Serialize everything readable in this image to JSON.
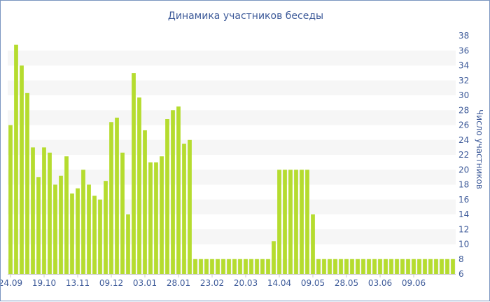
{
  "chart_data": {
    "type": "bar",
    "title": "Динамика участников беседы",
    "xlabel": "",
    "ylabel": "Число участников",
    "ylim": [
      6,
      38
    ],
    "y_ticks": [
      6,
      8,
      10,
      12,
      14,
      16,
      18,
      20,
      22,
      24,
      26,
      28,
      30,
      32,
      34,
      36,
      38
    ],
    "y_axis_position": "right",
    "grid": "alternating horizontal bands",
    "bar_color": "#b5dc2f",
    "band_color": "#f6f6f6",
    "text_color": "#3d5a99",
    "x_tick_labels": [
      {
        "label": "24.09",
        "index": 0
      },
      {
        "label": "19.10",
        "index": 6
      },
      {
        "label": "13.11",
        "index": 12
      },
      {
        "label": "09.12",
        "index": 18
      },
      {
        "label": "03.01",
        "index": 24
      },
      {
        "label": "28.01",
        "index": 30
      },
      {
        "label": "23.02",
        "index": 36
      },
      {
        "label": "20.03",
        "index": 42
      },
      {
        "label": "14.04",
        "index": 48
      },
      {
        "label": "09.05",
        "index": 54
      },
      {
        "label": "28.05",
        "index": 60
      },
      {
        "label": "03.06",
        "index": 66
      },
      {
        "label": "09.06",
        "index": 72
      }
    ],
    "values": [
      26,
      36.8,
      34,
      30.3,
      23,
      19,
      23,
      22.3,
      18,
      19.2,
      21.8,
      16.8,
      17.5,
      20,
      18,
      16.5,
      16,
      18.5,
      26.4,
      27,
      22.3,
      14,
      33,
      29.7,
      25.3,
      21,
      21,
      21.8,
      26.8,
      28,
      28.5,
      23.5,
      24,
      8,
      8,
      8,
      8,
      8,
      8,
      8,
      8,
      8,
      8,
      8,
      8,
      8,
      8,
      10.4,
      20,
      20,
      20,
      20,
      20,
      20,
      14,
      8,
      8,
      8,
      8,
      8,
      8,
      8,
      8,
      8,
      8,
      8,
      8,
      8,
      8,
      8,
      8,
      8,
      8,
      8,
      8,
      8,
      8,
      8,
      8,
      8
    ]
  }
}
